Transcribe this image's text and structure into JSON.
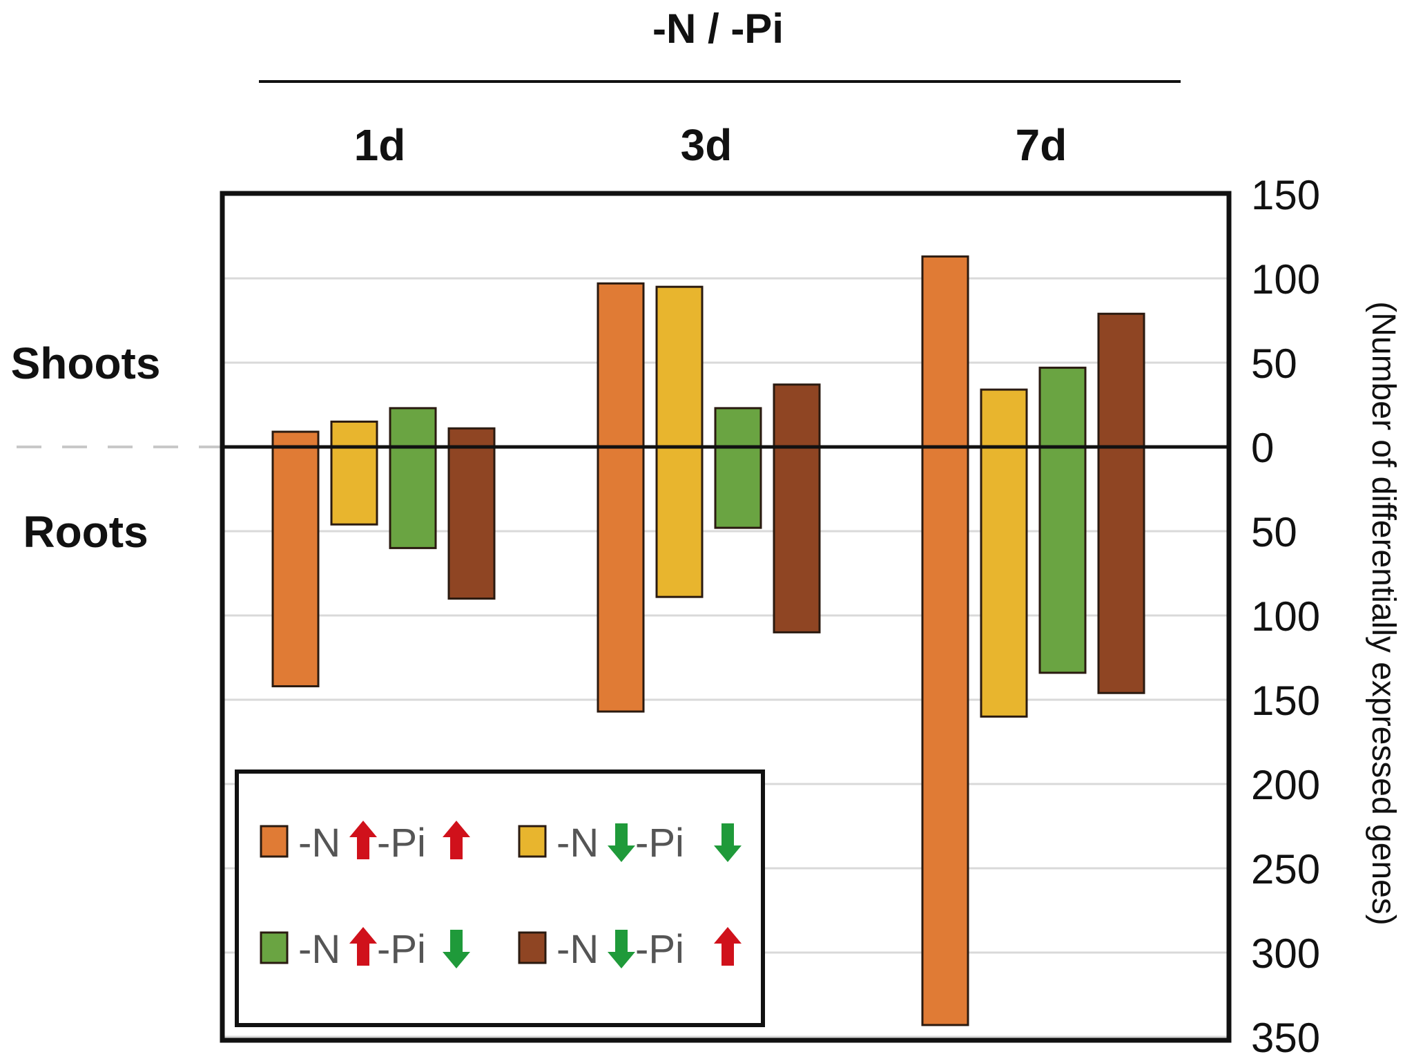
{
  "chart_data": {
    "type": "bar",
    "title": "-N / -Pi",
    "groups": [
      "1d",
      "3d",
      "7d"
    ],
    "row_labels": {
      "upper": "Shoots",
      "lower": "Roots"
    },
    "ylabel": "(Number of differentially expressed genes)",
    "upper_ticks": [
      "150",
      "100",
      "50"
    ],
    "zero_tick": "0",
    "lower_ticks": [
      "50",
      "100",
      "150",
      "200",
      "250",
      "300",
      "350"
    ],
    "ylim_upper": [
      0,
      150
    ],
    "ylim_lower": [
      0,
      350
    ],
    "lower_scale_note": "",
    "grid": true,
    "legend_position": "bottom-left",
    "series": [
      {
        "name": "-N↑ -Pi↑",
        "color": "#e07b35",
        "shoots": [
          9,
          97,
          113
        ],
        "roots": [
          142,
          157,
          343
        ]
      },
      {
        "name": "-N↓ -Pi↓",
        "color": "#e8b52e",
        "shoots": [
          15,
          95,
          34
        ],
        "roots": [
          46,
          89,
          160
        ]
      },
      {
        "name": "-N↑ -Pi↓",
        "color": "#6aa442",
        "shoots": [
          23,
          23,
          47
        ],
        "roots": [
          60,
          48,
          134
        ]
      },
      {
        "name": "-N↓ -Pi↑",
        "color": "#8f4523",
        "shoots": [
          11,
          37,
          79
        ],
        "roots": [
          90,
          110,
          146
        ]
      }
    ],
    "legend": [
      {
        "before": "-N",
        "arrow1": "up",
        "mid": " -Pi",
        "arrow2": "up"
      },
      {
        "before": "-N",
        "arrow1": "down",
        "mid": "  -Pi",
        "arrow2": "down"
      },
      {
        "before": "-N",
        "arrow1": "up",
        "mid": " -Pi",
        "arrow2": "down"
      },
      {
        "before": "-N",
        "arrow1": "down",
        "mid": "  -Pi",
        "arrow2": "up"
      }
    ],
    "arrow_colors": {
      "up": "#d0111b",
      "down": "#1f9a3a"
    }
  }
}
